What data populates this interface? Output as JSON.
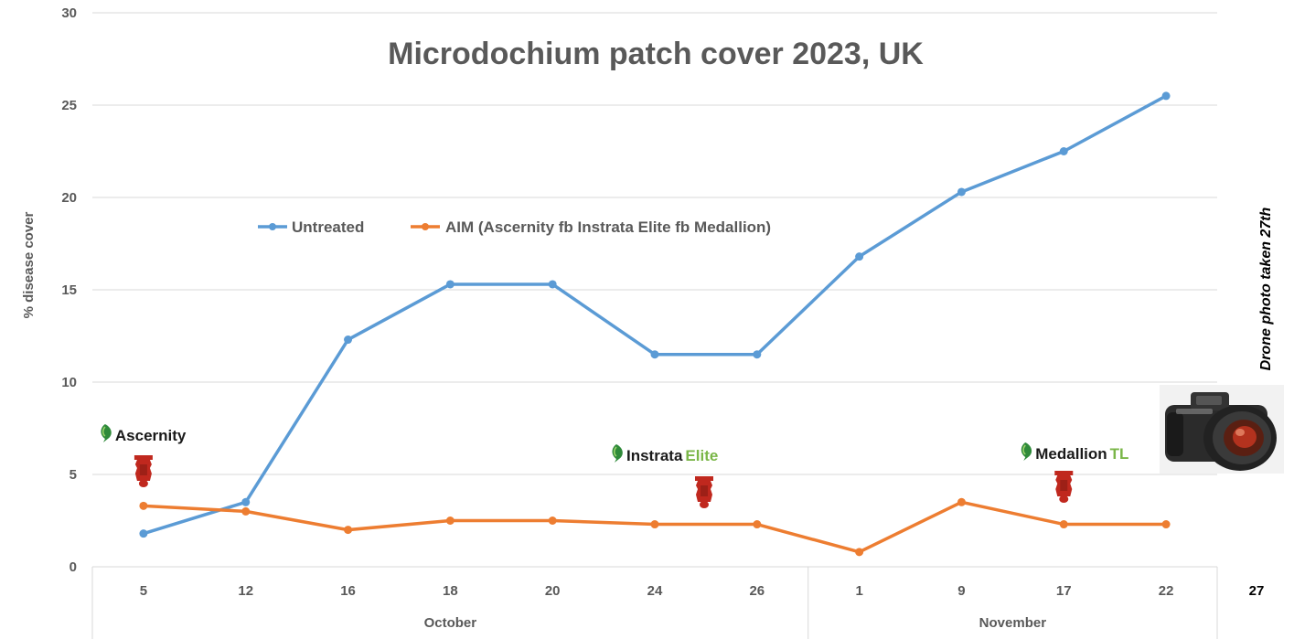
{
  "chart_data": {
    "type": "line",
    "title": "Microdochium patch cover 2023, UK",
    "ylabel": "% disease cover",
    "ylim": [
      0,
      30
    ],
    "yticks": [
      "0",
      "5",
      "10",
      "15",
      "20",
      "25",
      "30"
    ],
    "categories": [
      "5",
      "12",
      "16",
      "18",
      "20",
      "24",
      "26",
      "1",
      "9",
      "17",
      "22"
    ],
    "month_groups": [
      {
        "label": "October",
        "count": 7
      },
      {
        "label": "November",
        "count": 4
      }
    ],
    "extra_category": "27",
    "grid": true,
    "legend_position": "upper-left",
    "series": [
      {
        "name": "Untreated",
        "color": "#5B9BD5",
        "values": [
          1.8,
          3.5,
          12.3,
          15.3,
          15.3,
          11.5,
          11.5,
          16.8,
          20.3,
          22.5,
          25.5
        ]
      },
      {
        "name": "AIM (Ascernity fb Instrata Elite fb Medallion)",
        "color": "#ED7D31",
        "values": [
          3.3,
          3.0,
          2.0,
          2.5,
          2.5,
          2.3,
          2.3,
          0.8,
          3.5,
          2.3,
          2.3
        ]
      }
    ]
  },
  "annotations": {
    "drone_note": "Drone photo taken 27th",
    "products": [
      {
        "name_a": "Ascernity",
        "name_b": "",
        "color_a": "#1a1a1a",
        "color_b": "#1a1a1a",
        "logo": "leaf-logo-icon",
        "at_category": "5"
      },
      {
        "name_a": "Instrata",
        "name_b": "Elite",
        "color_a": "#1a1a1a",
        "color_b": "#7ab648",
        "logo": "leaf-logo-icon",
        "at_category": "24"
      },
      {
        "name_a": "Medallion",
        "name_b": "TL",
        "color_a": "#1a1a1a",
        "color_b": "#7ab648",
        "logo": "leaf-logo-icon",
        "at_category": "17"
      }
    ],
    "bottle_icon": "spray-bottle-icon",
    "bottle_color": "#c0281e",
    "camera_icon": "camera-icon"
  }
}
